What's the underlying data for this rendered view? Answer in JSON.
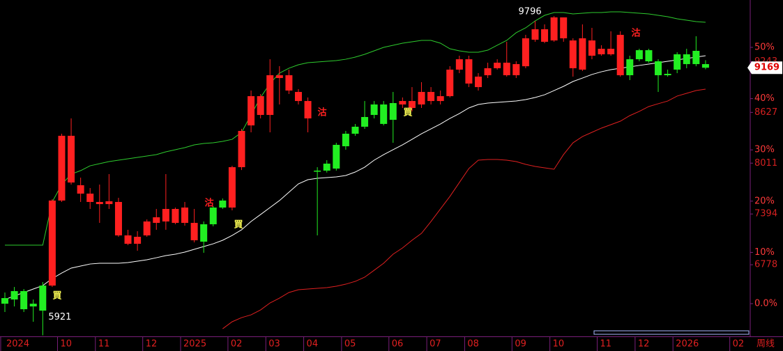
{
  "chart_data": {
    "type": "candlestick",
    "categories": [
      "2024",
      null,
      null,
      null,
      null,
      null,
      "10",
      null,
      null,
      null,
      "11",
      null,
      null,
      null,
      null,
      "12",
      null,
      null,
      null,
      "2025",
      null,
      null,
      null,
      null,
      "02",
      null,
      null,
      null,
      "03",
      null,
      null,
      null,
      "04",
      null,
      null,
      null,
      "05",
      null,
      null,
      null,
      null,
      "06",
      null,
      null,
      null,
      "07",
      null,
      null,
      null,
      "08",
      null,
      null,
      null,
      null,
      "09",
      null,
      null,
      null,
      "10",
      null,
      null,
      null,
      null,
      "11",
      null,
      null,
      null,
      "12",
      null,
      null,
      null,
      "2026",
      null,
      null,
      null,
      null,
      null,
      "02"
    ],
    "candles": {
      "up_color": "#ff2020",
      "down_color": "#22ee22",
      "open": [
        6373,
        6458,
        6458,
        6305,
        6525,
        6525,
        7557,
        7776,
        7641,
        7540,
        7514,
        7514,
        7134,
        7032,
        7032,
        7134,
        7286,
        7303,
        7286,
        7286,
        7075,
        7269,
        7472,
        7557,
        7472,
        7962,
        8469,
        8596,
        8596,
        9044,
        8892,
        8765,
        8554,
        7920,
        8005,
        8233,
        8368,
        8453,
        8571,
        8723,
        8723,
        8740,
        8723,
        8681,
        8723,
        8765,
        8765,
        8824,
        9146,
        8977,
        8934,
        9078,
        9163,
        9078,
        9078,
        9187,
        9509,
        9484,
        9500,
        9526,
        9163,
        9146,
        9315,
        9332,
        9332,
        9078,
        9272,
        9382,
        9382,
        9247,
        9095,
        9332,
        9332,
        9374,
        9213,
        null,
        null,
        null
      ],
      "high": [
        6441,
        6508,
        6483,
        6356,
        6568,
        7573,
        8368,
        8554,
        7835,
        7709,
        7751,
        7878,
        7590,
        7202,
        7185,
        7328,
        7455,
        7878,
        7472,
        7540,
        7455,
        7303,
        7489,
        7582,
        7979,
        8427,
        8892,
        8850,
        9272,
        9188,
        9146,
        8909,
        8808,
        7962,
        8047,
        8258,
        8402,
        8486,
        8765,
        8765,
        8765,
        8875,
        8808,
        8934,
        8994,
        8934,
        8892,
        9188,
        9315,
        9315,
        9103,
        9230,
        9272,
        9484,
        9247,
        9568,
        9737,
        9695,
        9796,
        9780,
        9526,
        9695,
        9653,
        9442,
        9611,
        9611,
        9315,
        9399,
        9399,
        9272,
        9146,
        9357,
        9399,
        9551,
        9260,
        null,
        null,
        null
      ],
      "low": [
        6204,
        6272,
        6204,
        6086,
        5921,
        6508,
        7540,
        7751,
        7540,
        7455,
        7286,
        7455,
        7117,
        7016,
        6948,
        7117,
        7202,
        7202,
        7269,
        7252,
        7049,
        6923,
        7244,
        7455,
        7438,
        7928,
        8385,
        8554,
        8385,
        8723,
        8850,
        8723,
        8385,
        7134,
        7897,
        7920,
        8174,
        8343,
        8427,
        8554,
        8469,
        8258,
        8681,
        8639,
        8681,
        8723,
        8723,
        8808,
        9103,
        8934,
        8892,
        9044,
        9146,
        9061,
        9044,
        9163,
        9484,
        9467,
        9484,
        9484,
        9061,
        9129,
        9272,
        9315,
        9315,
        9061,
        9019,
        9247,
        9230,
        8875,
        9061,
        9103,
        9163,
        9187,
        9150,
        null,
        null,
        null
      ],
      "close": [
        6305,
        6356,
        6238,
        6272,
        6221,
        7557,
        8343,
        8343,
        7743,
        7641,
        7540,
        7548,
        7540,
        7134,
        7117,
        7303,
        7354,
        7455,
        7455,
        7472,
        7286,
        7058,
        7269,
        7472,
        7962,
        8402,
        8824,
        8824,
        9078,
        9078,
        9078,
        8875,
        8765,
        7911,
        7920,
        7945,
        8216,
        8368,
        8453,
        8596,
        8487,
        8537,
        8765,
        8765,
        8875,
        8875,
        8824,
        9146,
        9272,
        9272,
        9061,
        9163,
        9230,
        9230,
        9213,
        9526,
        9636,
        9636,
        9780,
        9780,
        9500,
        9526,
        9500,
        9399,
        9399,
        9568,
        9078,
        9272,
        9247,
        9078,
        9078,
        9146,
        9213,
        9213,
        9169,
        null,
        null,
        null
      ]
    },
    "bands": [
      {
        "color": "#2ecc2e",
        "values": [
          7016,
          7016,
          7016,
          7016,
          7016,
          7540,
          7751,
          7878,
          7920,
          7979,
          8005,
          8030,
          8047,
          8064,
          8081,
          8098,
          8115,
          8148,
          8174,
          8199,
          8233,
          8250,
          8258,
          8275,
          8300,
          8385,
          8596,
          8808,
          8977,
          9103,
          9163,
          9205,
          9230,
          9239,
          9247,
          9256,
          9272,
          9298,
          9332,
          9374,
          9416,
          9442,
          9467,
          9484,
          9501,
          9501,
          9467,
          9399,
          9374,
          9357,
          9357,
          9382,
          9442,
          9501,
          9594,
          9653,
          9737,
          9805,
          9839,
          9839,
          9822,
          9830,
          9839,
          9839,
          9847,
          9847,
          9839,
          9830,
          9822,
          9805,
          9788,
          9763,
          9746,
          9729,
          9721,
          null,
          null,
          null
        ]
      },
      {
        "color": "#ffffff",
        "values": [
          6356,
          6399,
          6441,
          6483,
          6525,
          6610,
          6677,
          6737,
          6762,
          6787,
          6796,
          6796,
          6796,
          6804,
          6821,
          6838,
          6863,
          6889,
          6906,
          6931,
          6965,
          6999,
          7032,
          7075,
          7134,
          7202,
          7303,
          7387,
          7472,
          7557,
          7658,
          7759,
          7810,
          7827,
          7836,
          7844,
          7861,
          7903,
          7962,
          8047,
          8114,
          8174,
          8233,
          8300,
          8368,
          8427,
          8486,
          8554,
          8613,
          8681,
          8723,
          8740,
          8748,
          8757,
          8765,
          8782,
          8808,
          8841,
          8892,
          8943,
          9002,
          9044,
          9087,
          9120,
          9146,
          9163,
          9180,
          9197,
          9213,
          9230,
          9247,
          9264,
          9281,
          9298,
          9315,
          null,
          null,
          null
        ]
      },
      {
        "color": "#e02020",
        "values": [
          null,
          null,
          null,
          null,
          null,
          null,
          null,
          null,
          null,
          null,
          null,
          null,
          null,
          null,
          null,
          null,
          null,
          null,
          null,
          null,
          null,
          null,
          null,
          6001,
          6086,
          6136,
          6170,
          6229,
          6314,
          6373,
          6441,
          6475,
          6483,
          6492,
          6500,
          6517,
          6542,
          6576,
          6627,
          6711,
          6796,
          6906,
          6982,
          7075,
          7159,
          7303,
          7455,
          7607,
          7776,
          7945,
          8047,
          8055,
          8055,
          8047,
          8030,
          7996,
          7971,
          7954,
          7937,
          8115,
          8258,
          8334,
          8385,
          8436,
          8478,
          8520,
          8588,
          8639,
          8698,
          8732,
          8765,
          8825,
          8858,
          8892,
          8909,
          null,
          null,
          null
        ]
      }
    ],
    "ylim": [
      5900,
      9991
    ],
    "yticks": [
      6778,
      7394,
      8011,
      8627,
      9243
    ],
    "y2lim": [
      -6.52,
      59.24
    ],
    "y2ticks": [
      {
        "value": 0,
        "label": "0.0%"
      },
      {
        "value": 10,
        "label": "10%"
      },
      {
        "value": 20,
        "label": "20%"
      },
      {
        "value": 30,
        "label": "30%"
      },
      {
        "value": 40,
        "label": "40%"
      },
      {
        "value": 50,
        "label": "50%"
      }
    ],
    "annotations": [
      {
        "text": "買",
        "color": "#ffff55"
      },
      {
        "text": "沽",
        "color": "#ff2020"
      },
      {
        "text": "買",
        "color": "#ffff55"
      },
      {
        "text": "沽",
        "color": "#ff2020"
      },
      {
        "text": "買",
        "color": "#ffff55"
      },
      {
        "text": "沽",
        "color": "#ff2020"
      }
    ],
    "period_label": "周线"
  }
}
